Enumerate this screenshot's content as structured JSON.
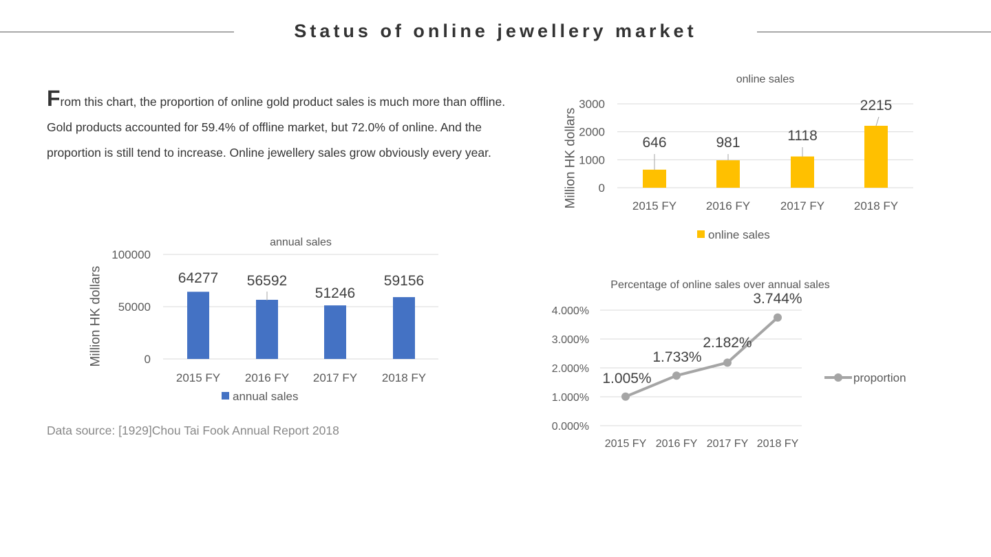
{
  "page": {
    "title": "Status of online jewellery market",
    "paragraph_cap": "F",
    "paragraph": "rom this chart, the proportion of online gold product sales is much more than offline. Gold products accounted for 59.4% of offline market, but 72.0% of online. And the proportion is still tend to increase. Online jewellery sales grow obviously every year.",
    "source": "Data source: [1929]Chou Tai Fook Annual Report 2018"
  },
  "chart_data": [
    {
      "id": "annual",
      "type": "bar",
      "title": "annual sales",
      "ylabel": "Million HK dollars",
      "categories": [
        "2015 FY",
        "2016 FY",
        "2017 FY",
        "2018 FY"
      ],
      "series": [
        {
          "name": "annual sales",
          "values": [
            64277,
            56592,
            51246,
            59156
          ]
        }
      ],
      "ylim": [
        0,
        100000
      ],
      "yticks": [
        "0",
        "50000",
        "100000"
      ],
      "data_labels": [
        "64277",
        "56592",
        "51246",
        "59156"
      ],
      "color": "#4472C4",
      "grid": true,
      "legend": "bottom"
    },
    {
      "id": "online",
      "type": "bar",
      "title": "online sales",
      "ylabel": "Million HK dollars",
      "categories": [
        "2015 FY",
        "2016 FY",
        "2017 FY",
        "2018 FY"
      ],
      "series": [
        {
          "name": "online sales",
          "values": [
            646,
            981,
            1118,
            2215
          ]
        }
      ],
      "ylim": [
        0,
        3000
      ],
      "yticks": [
        "0",
        "1000",
        "2000",
        "3000"
      ],
      "data_labels": [
        "646",
        "981",
        "1118",
        "2215"
      ],
      "color": "#FFC000",
      "grid": true,
      "legend": "bottom"
    },
    {
      "id": "proportion",
      "type": "line",
      "title": "Percentage of online sales over annual sales",
      "categories": [
        "2015 FY",
        "2016 FY",
        "2017 FY",
        "2018 FY"
      ],
      "series": [
        {
          "name": "proportion",
          "values": [
            1.005,
            1.733,
            2.182,
            3.744
          ]
        }
      ],
      "ylim": [
        0,
        4
      ],
      "yticks": [
        "0.000%",
        "1.000%",
        "2.000%",
        "3.000%",
        "4.000%"
      ],
      "data_labels": [
        "1.005%",
        "1.733%",
        "2.182%",
        "3.744%"
      ],
      "color": "#A5A5A5",
      "grid": true,
      "legend": "right"
    }
  ]
}
